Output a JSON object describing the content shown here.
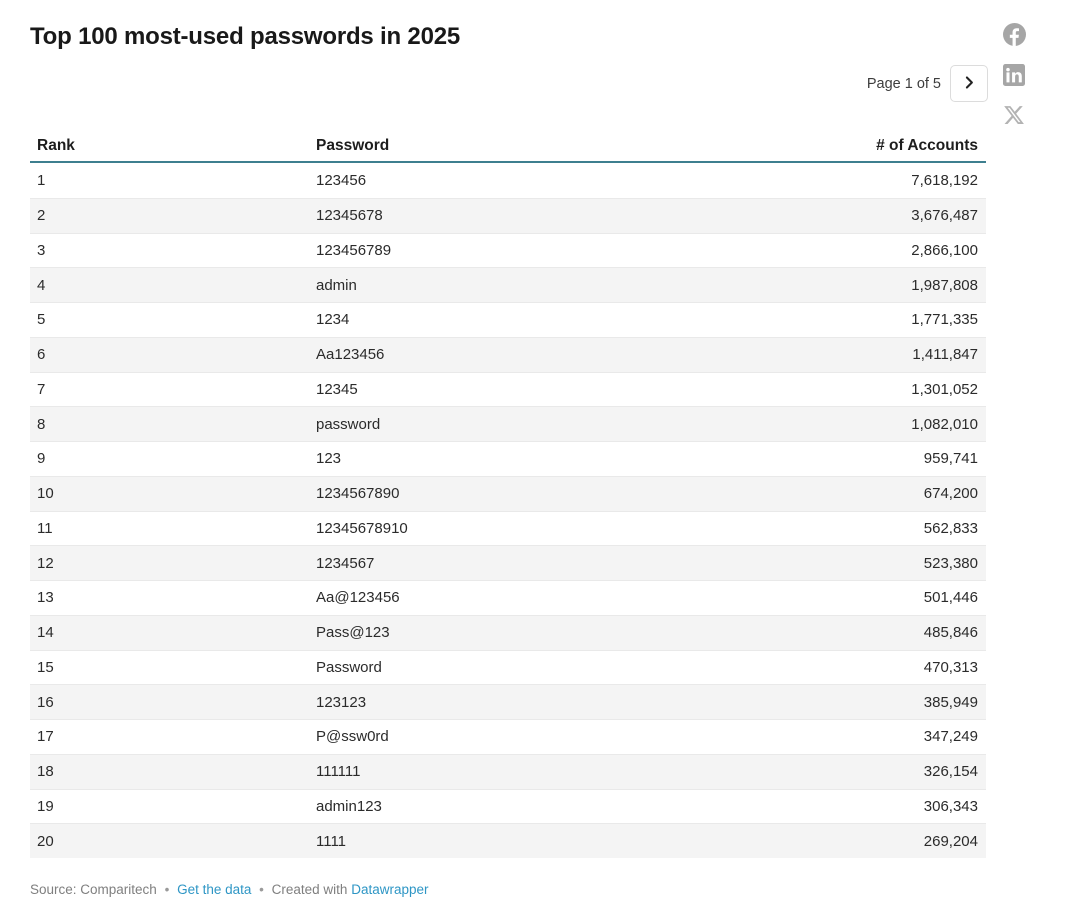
{
  "title": "Top 100 most-used passwords in 2025",
  "pagination": {
    "label": "Page 1 of 5",
    "current_page": 1,
    "total_pages": 5
  },
  "social_icons": [
    "facebook-icon",
    "linkedin-icon",
    "x-icon"
  ],
  "chart_data": {
    "type": "table",
    "title": "Top 100 most-used passwords in 2025",
    "columns": [
      "Rank",
      "Password",
      "# of Accounts"
    ],
    "rows": [
      [
        "1",
        "123456",
        "7,618,192"
      ],
      [
        "2",
        "12345678",
        "3,676,487"
      ],
      [
        "3",
        "123456789",
        "2,866,100"
      ],
      [
        "4",
        "admin",
        "1,987,808"
      ],
      [
        "5",
        "1234",
        "1,771,335"
      ],
      [
        "6",
        "Aa123456",
        "1,411,847"
      ],
      [
        "7",
        "12345",
        "1,301,052"
      ],
      [
        "8",
        "password",
        "1,082,010"
      ],
      [
        "9",
        "123",
        "959,741"
      ],
      [
        "10",
        "1234567890",
        "674,200"
      ],
      [
        "11",
        "12345678910",
        "562,833"
      ],
      [
        "12",
        "1234567",
        "523,380"
      ],
      [
        "13",
        "Aa@123456",
        "501,446"
      ],
      [
        "14",
        "Pass@123",
        "485,846"
      ],
      [
        "15",
        "Password",
        "470,313"
      ],
      [
        "16",
        "123123",
        "385,949"
      ],
      [
        "17",
        "P@ssw0rd",
        "347,249"
      ],
      [
        "18",
        "111111",
        "326,154"
      ],
      [
        "19",
        "admin123",
        "306,343"
      ],
      [
        "20",
        "1111",
        "269,204"
      ]
    ],
    "layout": {
      "striped_rows": "even",
      "header_rule_color": "#3e7f8f",
      "number_alignment": "right"
    }
  },
  "footer": {
    "source_text": "Source: Comparitech",
    "separator": "•",
    "get_data_link": "Get the data",
    "created_with": "Created with",
    "datawrapper_link": "Datawrapper"
  },
  "colors": {
    "header_rule": "#3e7f8f",
    "row_stripe": "#f4f4f4",
    "link_blue": "#2e96c5",
    "icon_gray": "#a6a6a6"
  }
}
